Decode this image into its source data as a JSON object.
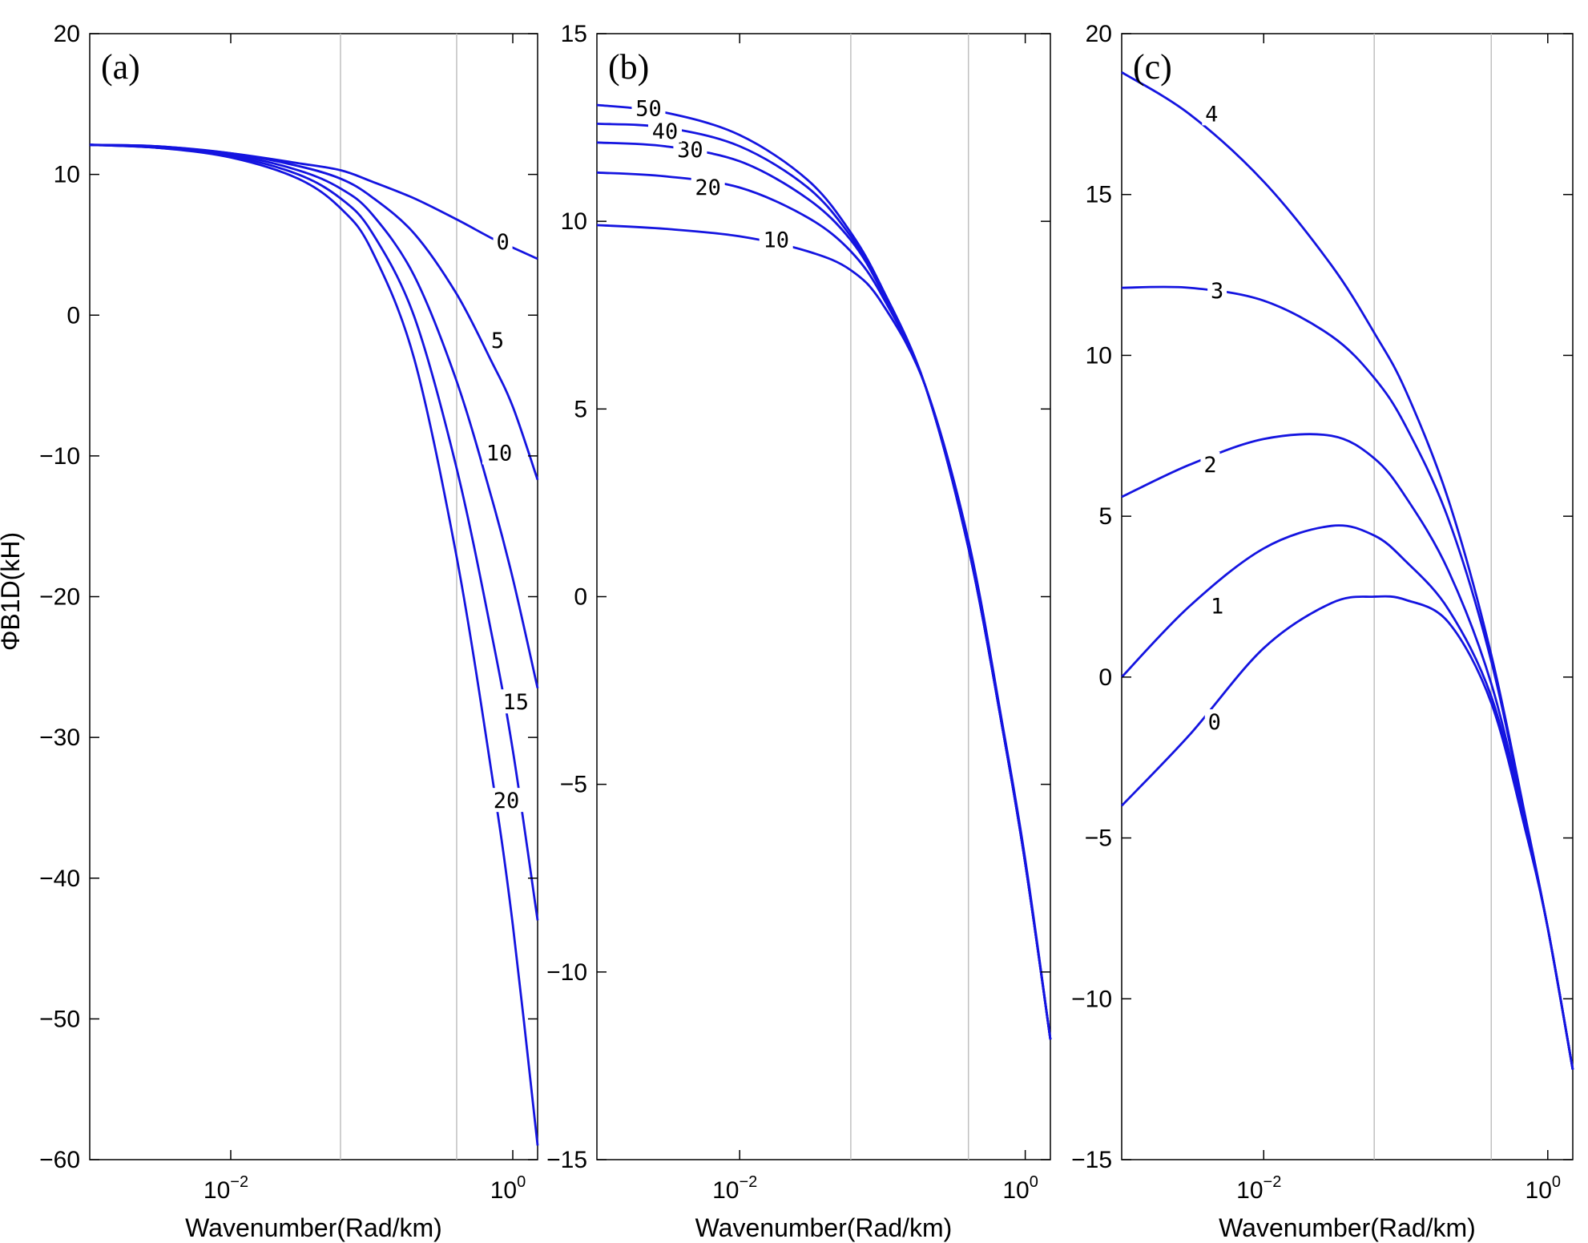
{
  "figure": {
    "ylabel": "ΦB1D(kH)"
  },
  "colors": {
    "curve": "#1414e0",
    "grid": "#c0c0c0",
    "axes": "#000000"
  },
  "chart_data": [
    {
      "type": "line",
      "panel_label": "(a)",
      "xlabel": "Wavenumber(Rad/km)",
      "xscale": "log",
      "xlim": [
        0.001,
        1.5
      ],
      "ylim": [
        -60,
        20
      ],
      "yticks": [
        -60,
        -50,
        -40,
        -30,
        -20,
        -10,
        0,
        10,
        20
      ],
      "xticks": [
        {
          "value": 0.01,
          "base": "10",
          "exp": "-2"
        },
        {
          "value": 1,
          "base": "10",
          "exp": "0"
        }
      ],
      "vertical_gridlines": [
        0.06,
        0.4
      ],
      "series": [
        {
          "name": "0",
          "label_at": [
            0.85,
            5.2
          ],
          "x": [
            0.001,
            0.003,
            0.01,
            0.03,
            0.06,
            0.1,
            0.2,
            0.4,
            0.7,
            1.0,
            1.5
          ],
          "y": [
            12.1,
            12.0,
            11.5,
            10.8,
            10.3,
            9.5,
            8.3,
            6.8,
            5.5,
            4.8,
            4.0
          ]
        },
        {
          "name": "5",
          "label_at": [
            0.78,
            -1.8
          ],
          "x": [
            0.001,
            0.003,
            0.01,
            0.03,
            0.06,
            0.1,
            0.2,
            0.4,
            0.7,
            1.0,
            1.5
          ],
          "y": [
            12.1,
            12.0,
            11.5,
            10.6,
            9.7,
            8.4,
            5.8,
            1.5,
            -3.2,
            -6.5,
            -11.7
          ]
        },
        {
          "name": "10",
          "label_at": [
            0.8,
            -9.8
          ],
          "x": [
            0.001,
            0.003,
            0.01,
            0.03,
            0.06,
            0.1,
            0.2,
            0.4,
            0.7,
            1.0,
            1.5
          ],
          "y": [
            12.1,
            11.9,
            11.4,
            10.3,
            9.0,
            7.2,
            2.8,
            -4.7,
            -12.8,
            -18.7,
            -26.5
          ]
        },
        {
          "name": "15",
          "label_at": [
            1.05,
            -27.5
          ],
          "x": [
            0.001,
            0.003,
            0.01,
            0.03,
            0.06,
            0.1,
            0.2,
            0.4,
            0.7,
            1.0,
            1.5
          ],
          "y": [
            12.1,
            11.9,
            11.3,
            10.0,
            8.3,
            5.9,
            -0.1,
            -10.9,
            -22.4,
            -30.9,
            -43.0
          ]
        },
        {
          "name": "20",
          "label_at": [
            0.9,
            -34.5
          ],
          "x": [
            0.001,
            0.003,
            0.01,
            0.03,
            0.06,
            0.1,
            0.2,
            0.4,
            0.7,
            1.0,
            1.5
          ],
          "y": [
            12.1,
            11.9,
            11.2,
            9.7,
            7.6,
            4.6,
            -3.1,
            -17.2,
            -32.2,
            -43.3,
            -59.0
          ]
        }
      ]
    },
    {
      "type": "line",
      "panel_label": "(b)",
      "xlabel": "Wavenumber(Rad/km)",
      "xscale": "log",
      "xlim": [
        0.001,
        1.5
      ],
      "ylim": [
        -15,
        15
      ],
      "yticks": [
        -15,
        -10,
        -5,
        0,
        5,
        10,
        15
      ],
      "xticks": [
        {
          "value": 0.01,
          "base": "10",
          "exp": "-2"
        },
        {
          "value": 1,
          "base": "10",
          "exp": "0"
        }
      ],
      "vertical_gridlines": [
        0.06,
        0.4
      ],
      "series": [
        {
          "name": "10",
          "label_at": [
            0.018,
            9.5
          ],
          "x": [
            0.001,
            0.003,
            0.01,
            0.03,
            0.06,
            0.1,
            0.2,
            0.4,
            0.7,
            1.0,
            1.5
          ],
          "y": [
            9.9,
            9.8,
            9.6,
            9.2,
            8.7,
            7.8,
            5.6,
            1.5,
            -3.5,
            -7.0,
            -11.8
          ]
        },
        {
          "name": "20",
          "label_at": [
            0.006,
            10.9
          ],
          "x": [
            0.001,
            0.003,
            0.01,
            0.03,
            0.06,
            0.1,
            0.2,
            0.4,
            0.7,
            1.0,
            1.5
          ],
          "y": [
            11.3,
            11.2,
            10.9,
            10.1,
            9.2,
            8.0,
            5.6,
            1.4,
            -3.6,
            -7.1,
            -11.8
          ]
        },
        {
          "name": "30",
          "label_at": [
            0.0045,
            11.9
          ],
          "x": [
            0.001,
            0.003,
            0.01,
            0.03,
            0.06,
            0.1,
            0.2,
            0.4,
            0.7,
            1.0,
            1.5
          ],
          "y": [
            12.1,
            12.0,
            11.6,
            10.6,
            9.5,
            8.1,
            5.6,
            1.3,
            -3.6,
            -7.1,
            -11.8
          ]
        },
        {
          "name": "40",
          "label_at": [
            0.003,
            12.4
          ],
          "x": [
            0.001,
            0.003,
            0.01,
            0.03,
            0.06,
            0.1,
            0.2,
            0.4,
            0.7,
            1.0,
            1.5
          ],
          "y": [
            12.6,
            12.5,
            12.0,
            10.9,
            9.6,
            8.2,
            5.6,
            1.3,
            -3.6,
            -7.1,
            -11.8
          ]
        },
        {
          "name": "50",
          "label_at": [
            0.0023,
            13.0
          ],
          "x": [
            0.001,
            0.003,
            0.01,
            0.03,
            0.06,
            0.1,
            0.2,
            0.4,
            0.7,
            1.0,
            1.5
          ],
          "y": [
            13.1,
            12.9,
            12.3,
            11.1,
            9.7,
            8.2,
            5.6,
            1.3,
            -3.6,
            -7.1,
            -11.8
          ]
        }
      ]
    },
    {
      "type": "line",
      "panel_label": "(c)",
      "xlabel": "Wavenumber(Rad/km)",
      "xscale": "log",
      "xlim": [
        0.001,
        1.5
      ],
      "ylim": [
        -15,
        20
      ],
      "yticks": [
        -15,
        -10,
        -5,
        0,
        5,
        10,
        15,
        20
      ],
      "xticks": [
        {
          "value": 0.01,
          "base": "10",
          "exp": "-2"
        },
        {
          "value": 1,
          "base": "10",
          "exp": "0"
        }
      ],
      "vertical_gridlines": [
        0.06,
        0.4
      ],
      "series": [
        {
          "name": "0",
          "label_at": [
            0.0045,
            -1.4
          ],
          "x": [
            0.001,
            0.003,
            0.01,
            0.03,
            0.06,
            0.1,
            0.2,
            0.4,
            0.7,
            1.0,
            1.5
          ],
          "y": [
            -4.0,
            -1.8,
            0.9,
            2.3,
            2.5,
            2.4,
            1.7,
            -0.8,
            -4.8,
            -7.8,
            -12.2
          ]
        },
        {
          "name": "1",
          "label_at": [
            0.0047,
            2.2
          ],
          "x": [
            0.001,
            0.003,
            0.01,
            0.03,
            0.06,
            0.1,
            0.2,
            0.4,
            0.7,
            1.0,
            1.5
          ],
          "y": [
            0.0,
            2.2,
            4.0,
            4.7,
            4.4,
            3.6,
            2.1,
            -0.6,
            -4.7,
            -7.8,
            -12.2
          ]
        },
        {
          "name": "2",
          "label_at": [
            0.0042,
            6.6
          ],
          "x": [
            0.001,
            0.003,
            0.01,
            0.03,
            0.06,
            0.1,
            0.2,
            0.4,
            0.7,
            1.0,
            1.5
          ],
          "y": [
            5.6,
            6.6,
            7.4,
            7.5,
            6.8,
            5.6,
            3.3,
            -0.2,
            -4.6,
            -7.8,
            -12.2
          ]
        },
        {
          "name": "3",
          "label_at": [
            0.0047,
            12.0
          ],
          "x": [
            0.001,
            0.003,
            0.01,
            0.03,
            0.06,
            0.1,
            0.2,
            0.4,
            0.7,
            1.0,
            1.5
          ],
          "y": [
            12.1,
            12.1,
            11.7,
            10.6,
            9.3,
            7.8,
            4.9,
            0.5,
            -4.5,
            -7.8,
            -12.2
          ]
        },
        {
          "name": "4",
          "label_at": [
            0.0043,
            17.5
          ],
          "x": [
            0.001,
            0.003,
            0.01,
            0.03,
            0.06,
            0.1,
            0.2,
            0.4,
            0.7,
            1.0,
            1.5
          ],
          "y": [
            18.8,
            17.5,
            15.4,
            12.8,
            10.7,
            8.9,
            5.5,
            0.7,
            -4.4,
            -7.8,
            -12.2
          ]
        }
      ]
    }
  ]
}
